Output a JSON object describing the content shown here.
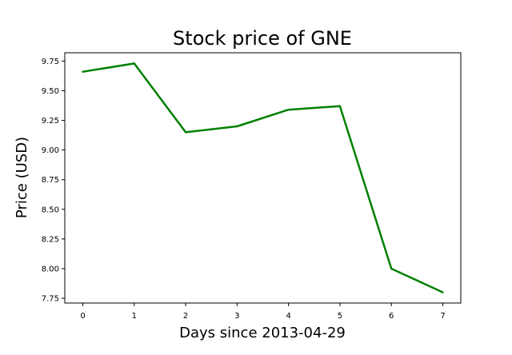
{
  "chart_data": {
    "type": "line",
    "title": "Stock price of GNE",
    "xlabel": "Days since 2013-04-29",
    "ylabel": "Price (USD)",
    "x": [
      0,
      1,
      2,
      3,
      4,
      5,
      6,
      7
    ],
    "series": [
      {
        "values": [
          9.66,
          9.73,
          9.15,
          9.2,
          9.34,
          9.37,
          8.0,
          7.8
        ],
        "color": "#008000"
      }
    ],
    "xlim": [
      -0.35,
      7.35
    ],
    "ylim": [
      7.71,
      9.82
    ],
    "xticks": [
      0,
      1,
      2,
      3,
      4,
      5,
      6,
      7
    ],
    "xtick_labels": [
      "0",
      "1",
      "2",
      "3",
      "4",
      "5",
      "6",
      "7"
    ],
    "yticks": [
      7.75,
      8.0,
      8.25,
      8.5,
      8.75,
      9.0,
      9.25,
      9.5,
      9.75
    ],
    "ytick_labels": [
      "7.75",
      "8.00",
      "8.25",
      "8.50",
      "8.75",
      "9.00",
      "9.25",
      "9.50",
      "9.75"
    ],
    "grid": false,
    "legend": "none"
  }
}
